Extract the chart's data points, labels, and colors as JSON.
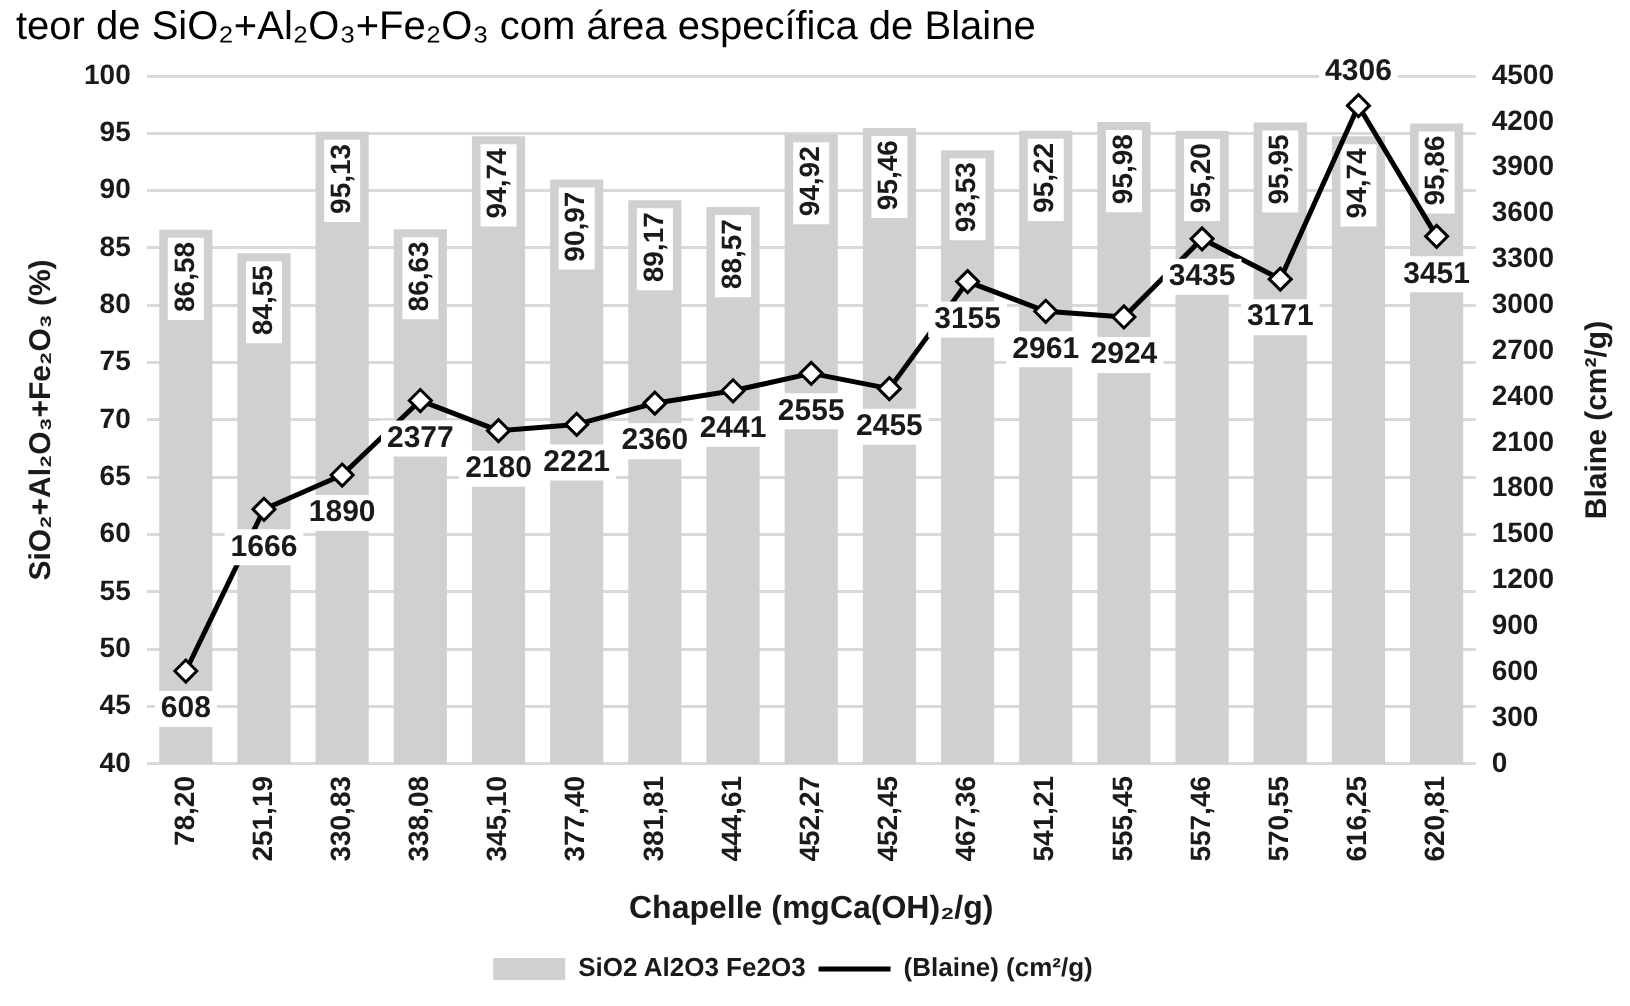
{
  "chart_data": {
    "type": "bar",
    "title": "teor de SiO₂+Al₂O₃+Fe₂O₃ com área específica de Blaine",
    "xlabel": "Chapelle (mgCa(OH)₂/g)",
    "ylabel": "SiO₂+Al₂O₃+Fe₂O₃ (%)",
    "y2label": "Blaine (cm²/g)",
    "categories": [
      "78,20",
      "251,19",
      "330,83",
      "338,08",
      "345,10",
      "377,40",
      "381,81",
      "444,61",
      "452,27",
      "452,45",
      "467,36",
      "541,21",
      "555,45",
      "557,46",
      "570,55",
      "616,25",
      "620,81"
    ],
    "series": [
      {
        "name": "SiO2 Al2O3 Fe2O3",
        "color": "#d0d0d0",
        "values": [
          86.58,
          84.55,
          95.13,
          86.63,
          94.74,
          90.97,
          89.17,
          88.57,
          94.92,
          95.46,
          93.53,
          95.22,
          95.98,
          95.2,
          95.95,
          94.74,
          95.86
        ],
        "value_labels": [
          "86,58",
          "84,55",
          "95,13",
          "86,63",
          "94,74",
          "90,97",
          "89,17",
          "88,57",
          "94,92",
          "95,46",
          "93,53",
          "95,22",
          "95,98",
          "95,20",
          "95,95",
          "94,74",
          "95,86"
        ]
      },
      {
        "name": "(Blaine) (cm²/g)",
        "type": "line",
        "axis": "y2",
        "color": "#000000",
        "marker": "diamond",
        "line_style": "solid",
        "values": [
          608,
          1666,
          1890,
          2377,
          2180,
          2221,
          2360,
          2441,
          2555,
          2455,
          3155,
          2961,
          2924,
          3435,
          3171,
          4306,
          3451
        ],
        "value_labels": [
          "608",
          "1666",
          "1890",
          "2377",
          "2180",
          "2221",
          "2360",
          "2441",
          "2555",
          "2455",
          "3155",
          "2961",
          "2924",
          "3435",
          "3171",
          "4306",
          "3451"
        ]
      }
    ],
    "ylim": [
      40,
      100
    ],
    "yticks": [
      40,
      45,
      50,
      55,
      60,
      65,
      70,
      75,
      80,
      85,
      90,
      95,
      100
    ],
    "y2lim": [
      0,
      4500
    ],
    "y2ticks": [
      0,
      300,
      600,
      900,
      1200,
      1500,
      1800,
      2100,
      2400,
      2700,
      3000,
      3300,
      3600,
      3900,
      4200,
      4500
    ],
    "grid": "y",
    "legend": "bottom"
  }
}
